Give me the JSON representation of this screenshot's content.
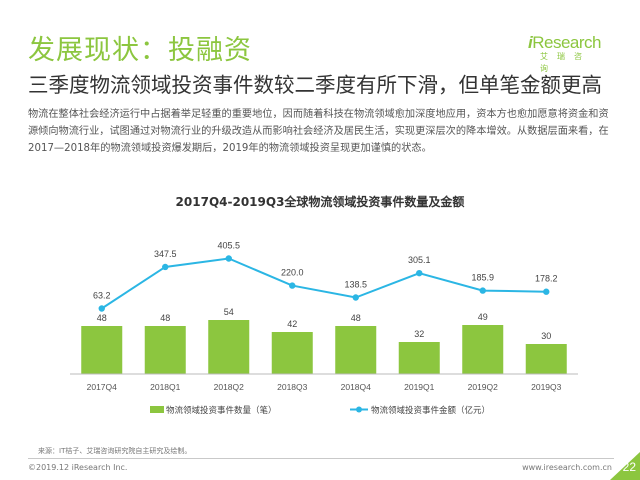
{
  "header": {
    "title": "发展现状：投融资",
    "subtitle": "三季度物流领域投资事件数较二季度有所下滑，但单笔金额更高"
  },
  "logo": {
    "wordmark_i": "i",
    "wordmark_rest": "Research",
    "sub": "艾瑞咨询"
  },
  "description": "物流在整体社会经济运行中占据着举足轻重的重要地位，因而随着科技在物流领域愈加深度地应用，资本方也愈加愿意将资金和资源倾向物流行业，试图通过对物流行业的升级改造从而影响社会经济及居民生活，实现更深层次的降本增效。从数据层面来看，在2017—2018年的物流领域投资爆发期后，2019年的物流领域投资呈现更加谨慎的状态。",
  "chart_data": {
    "type": "bar",
    "title": "2017Q4-2019Q3全球物流领域投资事件数量及金额",
    "categories": [
      "2017Q4",
      "2018Q1",
      "2018Q2",
      "2018Q3",
      "2018Q4",
      "2019Q1",
      "2019Q2",
      "2019Q3"
    ],
    "series": [
      {
        "name": "物流领域投资事件数量（笔）",
        "type": "bar",
        "values": [
          48,
          48,
          54,
          42,
          48,
          32,
          49,
          30
        ],
        "value_labels": [
          "48",
          "48",
          "54",
          "42",
          "48",
          "32",
          "49",
          "30"
        ],
        "color": "#8cc63f"
      },
      {
        "name": "物流领域投资事件金额（亿元）",
        "type": "line",
        "values": [
          63.2,
          347.5,
          405.5,
          220.0,
          138.5,
          305.1,
          185.9,
          178.2
        ],
        "value_labels": [
          "63.2",
          "347.5",
          "405.5",
          "220.0",
          "138.5",
          "305.1",
          "185.9",
          "178.2"
        ],
        "color": "#2bb6e4"
      }
    ],
    "legend_position": "bottom",
    "grid": false
  },
  "footer": {
    "source": "来源：IT桔子、艾瑞咨询研究院自主研究及绘制。",
    "copyright": "©2019.12 iResearch Inc.",
    "website": "www.iresearch.com.cn",
    "page": "22"
  },
  "colors": {
    "accent": "#8cc63f",
    "line": "#2bb6e4"
  }
}
